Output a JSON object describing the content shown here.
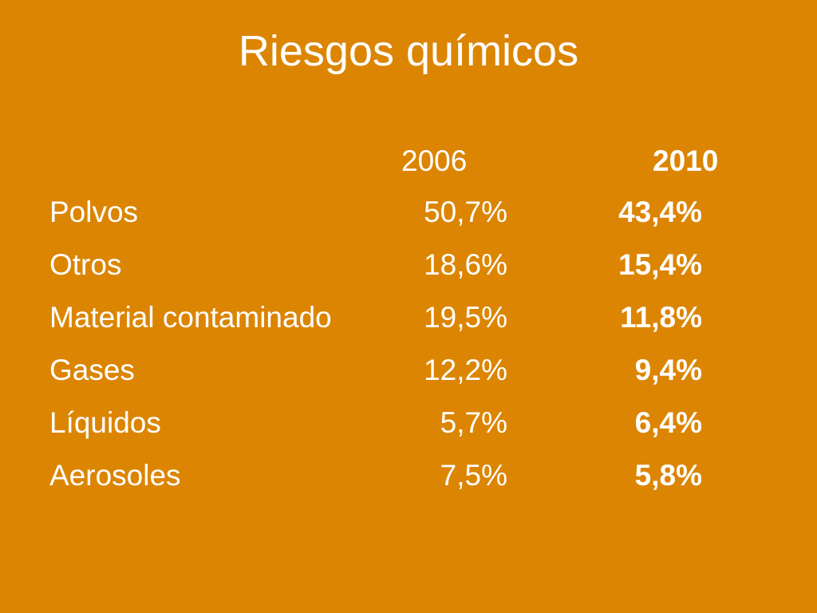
{
  "slide": {
    "title": "Riesgos químicos",
    "columns": {
      "year_a": "2006",
      "year_b": "2010"
    },
    "rows": [
      {
        "label": "Polvos",
        "v2006": "50,7%",
        "v2010": "43,4%"
      },
      {
        "label": "Otros",
        "v2006": "18,6%",
        "v2010": "15,4%"
      },
      {
        "label": "Material contaminado",
        "v2006": "19,5%",
        "v2010": "11,8%"
      },
      {
        "label": "Gases",
        "v2006": "12,2%",
        "v2010": "9,4%"
      },
      {
        "label": "Líquidos",
        "v2006": "5,7%",
        "v2010": "6,4%"
      },
      {
        "label": "Aerosoles",
        "v2006": "7,5%",
        "v2010": "5,8%"
      }
    ],
    "colors": {
      "background": "#dc8502",
      "text": "#ffffff"
    }
  }
}
